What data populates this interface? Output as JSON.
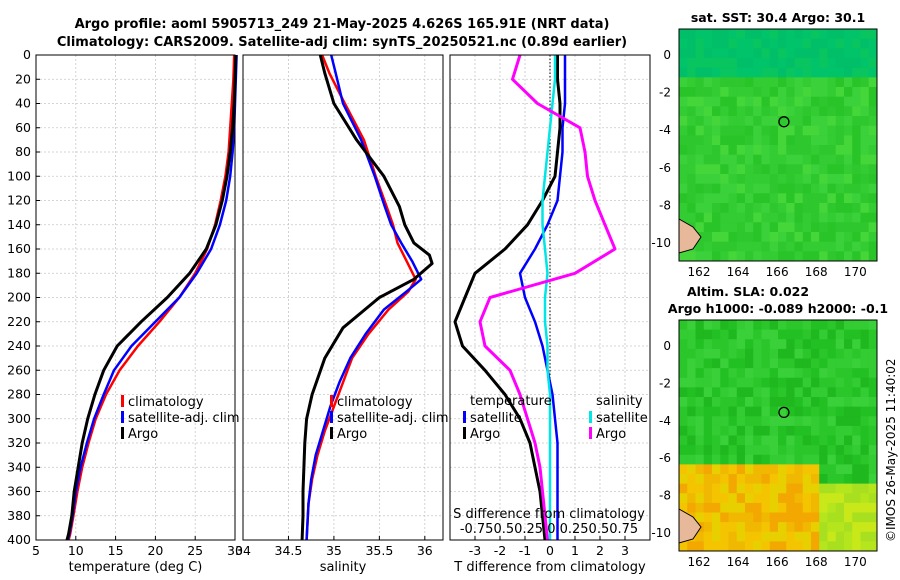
{
  "titles": {
    "line1": "Argo profile: aoml 5905713_249 21-May-2025 4.626S 165.91E (NRT data)",
    "line2": "Climatology: CARS2009. Satellite-adj clim: synTS_20250521.nc (0.89d earlier)"
  },
  "colors": {
    "clim": "#ff0000",
    "sat": "#0000ff",
    "argo": "#000000",
    "sat_s": "#00e5e5",
    "argo_s": "#ff00ff"
  },
  "depth_axis": {
    "ylim": [
      0,
      400
    ],
    "ticks": [
      "0",
      "20",
      "40",
      "60",
      "80",
      "100",
      "120",
      "140",
      "160",
      "180",
      "200",
      "220",
      "240",
      "260",
      "280",
      "300",
      "320",
      "340",
      "360",
      "380",
      "400"
    ]
  },
  "chart_data": [
    {
      "id": "temp",
      "type": "line",
      "xlabel": "temperature (deg C)",
      "xlim": [
        5,
        30
      ],
      "xticks": [
        "5",
        "10",
        "15",
        "20",
        "25",
        "30"
      ],
      "legend": [
        "climatology",
        "satellite-adj. clim",
        "Argo"
      ],
      "series": [
        {
          "name": "climatology",
          "color": "#ff0000",
          "x": [
            29.9,
            29.8,
            29.6,
            29.4,
            29.2,
            28.8,
            28.2,
            27.5,
            26.5,
            25.0,
            23.0,
            20.5,
            17.8,
            15.5,
            13.8,
            12.5,
            11.6,
            10.8,
            10.2,
            9.7,
            9.3,
            9.1
          ],
          "y": [
            0,
            20,
            40,
            60,
            80,
            100,
            120,
            140,
            160,
            180,
            200,
            220,
            240,
            260,
            280,
            300,
            320,
            340,
            360,
            380,
            395,
            400
          ]
        },
        {
          "name": "satellite-adj. clim",
          "color": "#0000ff",
          "x": [
            30.2,
            30.1,
            30.0,
            29.9,
            29.7,
            29.4,
            28.9,
            28.1,
            27.0,
            25.2,
            23.0,
            20.0,
            17.0,
            14.8,
            13.5,
            12.3,
            11.4,
            10.6,
            10.0,
            9.6,
            9.2,
            9.0
          ],
          "y": [
            0,
            20,
            40,
            60,
            80,
            100,
            120,
            140,
            160,
            180,
            200,
            220,
            240,
            260,
            280,
            300,
            320,
            340,
            360,
            380,
            395,
            400
          ]
        },
        {
          "name": "Argo",
          "color": "#000000",
          "x": [
            30.1,
            30.0,
            29.9,
            29.7,
            29.4,
            29.0,
            28.4,
            27.6,
            26.4,
            24.3,
            21.5,
            18.2,
            15.2,
            13.5,
            12.4,
            11.5,
            10.8,
            10.3,
            9.8,
            9.5,
            9.1,
            8.9
          ],
          "y": [
            0,
            20,
            40,
            60,
            80,
            100,
            120,
            140,
            160,
            180,
            200,
            220,
            240,
            260,
            280,
            300,
            320,
            340,
            360,
            380,
            395,
            400
          ]
        }
      ]
    },
    {
      "id": "sal",
      "type": "line",
      "xlabel": "salinity",
      "xlim": [
        34,
        36.2
      ],
      "xticks": [
        "34",
        "34.5",
        "35",
        "35.5",
        "36"
      ],
      "legend": [
        "climatology",
        "satellite-adj. clim",
        "Argo"
      ],
      "series": [
        {
          "name": "climatology",
          "color": "#ff0000",
          "x": [
            34.87,
            34.95,
            35.12,
            35.33,
            35.46,
            35.58,
            35.65,
            35.7,
            35.8,
            35.9,
            35.82,
            35.6,
            35.38,
            35.2,
            35.1,
            35.0,
            34.9,
            34.82,
            34.76,
            34.72,
            34.7
          ],
          "y": [
            0,
            15,
            40,
            70,
            100,
            125,
            140,
            155,
            170,
            185,
            195,
            210,
            230,
            250,
            270,
            290,
            310,
            330,
            350,
            370,
            400
          ]
        },
        {
          "name": "satellite-adj. clim",
          "color": "#0000ff",
          "x": [
            34.97,
            35.02,
            35.1,
            35.3,
            35.45,
            35.56,
            35.63,
            35.74,
            35.86,
            35.96,
            35.8,
            35.55,
            35.35,
            35.18,
            35.06,
            34.96,
            34.88,
            34.8,
            34.75,
            34.72,
            34.7
          ],
          "y": [
            0,
            15,
            40,
            70,
            100,
            125,
            140,
            155,
            170,
            185,
            195,
            210,
            230,
            250,
            270,
            290,
            310,
            330,
            350,
            370,
            400
          ]
        },
        {
          "name": "Argo",
          "color": "#000000",
          "x": [
            34.85,
            34.9,
            35.0,
            35.25,
            35.55,
            35.72,
            35.78,
            35.88,
            36.05,
            36.08,
            35.88,
            35.5,
            35.1,
            34.9,
            34.76,
            34.7,
            34.68,
            34.67,
            34.66,
            34.66,
            34.65
          ],
          "y": [
            0,
            15,
            40,
            70,
            100,
            125,
            140,
            155,
            165,
            172,
            185,
            200,
            225,
            250,
            280,
            300,
            320,
            340,
            360,
            380,
            400
          ]
        }
      ]
    },
    {
      "id": "diff",
      "type": "line",
      "xlabel": "T difference from climatology",
      "xlim": [
        -4,
        4
      ],
      "xticks": [
        "-3",
        "-2",
        "-1",
        "0",
        "1",
        "2",
        "3"
      ],
      "top_label": "S difference from climatology",
      "top_ticks": "-0.750.50.25 0  0.250.50.75",
      "legend_t_title": "temperature",
      "legend_s_title": "salinity",
      "legend_t": [
        "satellite",
        "Argo"
      ],
      "legend_s": [
        "satellite",
        "Argo"
      ],
      "series": [
        {
          "name": "T satellite",
          "color": "#0000ff",
          "x": [
            0.6,
            0.6,
            0.6,
            0.5,
            0.5,
            0.4,
            0.3,
            -0.1,
            -0.6,
            -1.2,
            -1.0,
            -0.6,
            -0.3,
            -0.1,
            0.1,
            0.2,
            0.3,
            0.3,
            0.3,
            0.3,
            0.3
          ],
          "y": [
            0,
            20,
            40,
            60,
            80,
            100,
            120,
            140,
            160,
            180,
            200,
            220,
            240,
            260,
            280,
            300,
            320,
            340,
            360,
            380,
            400
          ]
        },
        {
          "name": "T Argo",
          "color": "#000000",
          "x": [
            0.3,
            0.3,
            0.4,
            0.4,
            0.3,
            0.2,
            -0.3,
            -0.9,
            -1.8,
            -3.0,
            -3.4,
            -3.8,
            -3.5,
            -2.6,
            -1.8,
            -1.2,
            -0.8,
            -0.6,
            -0.4,
            -0.3,
            -0.2
          ],
          "y": [
            0,
            20,
            40,
            60,
            80,
            100,
            120,
            140,
            160,
            180,
            200,
            220,
            240,
            260,
            280,
            300,
            320,
            340,
            360,
            380,
            400
          ]
        },
        {
          "name": "S satellite",
          "color": "#00e5e5",
          "x": [
            0.2,
            0.2,
            0.1,
            0.0,
            -0.1,
            -0.2,
            -0.3,
            -0.3,
            -0.2,
            -0.1,
            -0.2,
            -0.2,
            -0.1,
            -0.1,
            0.0,
            0.0,
            0.0,
            0.0,
            0.0,
            0.0,
            0.0
          ],
          "y": [
            0,
            20,
            40,
            60,
            80,
            100,
            120,
            140,
            160,
            180,
            200,
            220,
            240,
            260,
            280,
            300,
            320,
            340,
            360,
            380,
            400
          ]
        },
        {
          "name": "S Argo",
          "color": "#ff00ff",
          "x": [
            -1.2,
            -1.5,
            -0.5,
            1.2,
            1.4,
            1.5,
            1.8,
            2.2,
            2.6,
            1.0,
            -2.4,
            -2.8,
            -2.6,
            -1.6,
            -1.2,
            -0.9,
            -0.6,
            -0.4,
            -0.3,
            -0.2,
            -0.1
          ],
          "y": [
            0,
            20,
            40,
            60,
            80,
            100,
            120,
            140,
            160,
            180,
            200,
            220,
            240,
            260,
            280,
            300,
            320,
            340,
            360,
            380,
            400
          ]
        }
      ]
    }
  ],
  "maps": {
    "sst_title": "sat. SST: 30.4 Argo: 30.1",
    "sla_title1": "Altim. SLA: 0.022",
    "sla_title2": "Argo h1000: -0.089 h2000: -0.1",
    "yticks": [
      "0",
      "-2",
      "-4",
      "-6",
      "-8",
      "-10"
    ],
    "xticks": [
      "162",
      "164",
      "166",
      "168",
      "170"
    ]
  },
  "footer": "©IMOS 26-May-2025 11:40:02"
}
